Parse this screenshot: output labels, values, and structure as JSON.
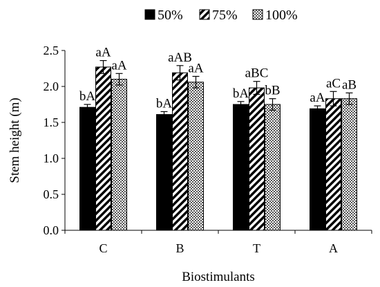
{
  "chart_data": {
    "type": "bar",
    "title": "",
    "xlabel": "Biostimulants",
    "ylabel": "Stem height (m)",
    "ylim": [
      0,
      2.5
    ],
    "yticks": [
      "0.0",
      "0.5",
      "1.0",
      "1.5",
      "2.0",
      "2.5"
    ],
    "grid": false,
    "legend_position": "top-right",
    "categories": [
      "C",
      "B",
      "T",
      "A"
    ],
    "series": [
      {
        "name": "50%",
        "pattern": "solid-black",
        "values": [
          1.71,
          1.61,
          1.75,
          1.69
        ],
        "errors": [
          0.04,
          0.04,
          0.04,
          0.04
        ],
        "labels": [
          "bA",
          "bA",
          "bA",
          "aA"
        ]
      },
      {
        "name": "75%",
        "pattern": "diagonal-hatch",
        "values": [
          2.27,
          2.19,
          1.98,
          1.83
        ],
        "errors": [
          0.09,
          0.1,
          0.09,
          0.1
        ],
        "labels": [
          "aA",
          "aAB",
          "aBC",
          "aC"
        ]
      },
      {
        "name": "100%",
        "pattern": "checkered",
        "values": [
          2.1,
          2.06,
          1.75,
          1.83
        ],
        "errors": [
          0.08,
          0.08,
          0.08,
          0.08
        ],
        "labels": [
          "aA",
          "aA",
          "bB",
          "aB"
        ]
      }
    ]
  }
}
